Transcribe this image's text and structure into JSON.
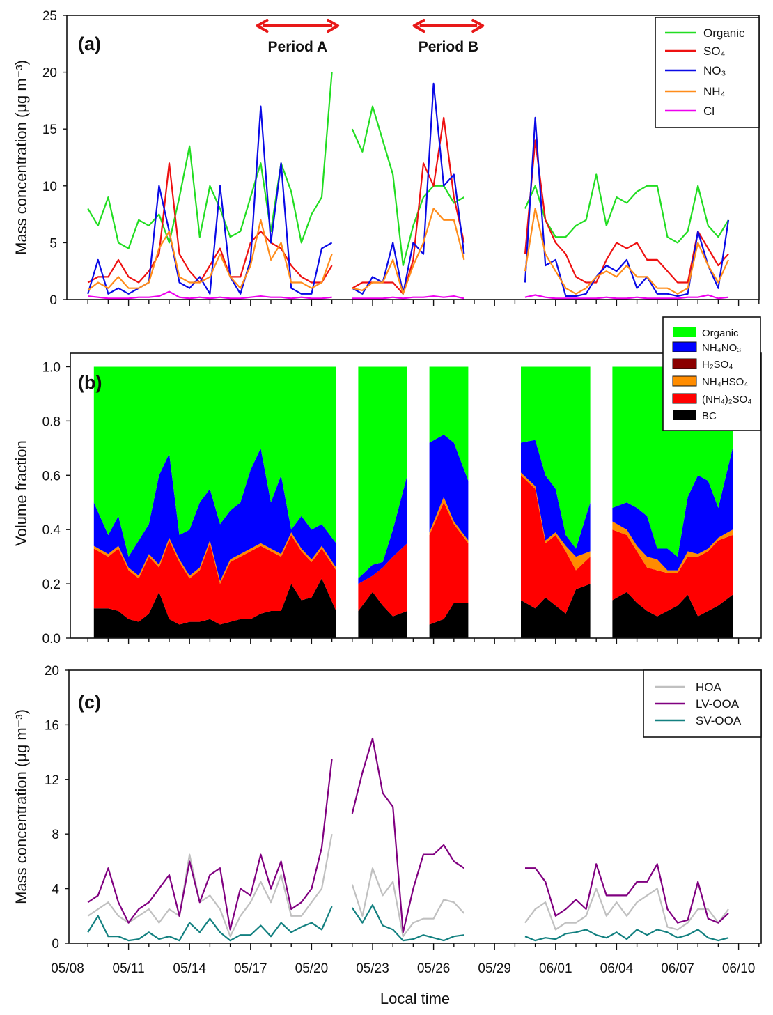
{
  "x": [
    "05/09 00:00",
    "05/09 12:00",
    "05/10 00:00",
    "05/10 12:00",
    "05/11 00:00",
    "05/11 12:00",
    "05/12 00:00",
    "05/12 12:00",
    "05/13 00:00",
    "05/13 12:00",
    "05/14 00:00",
    "05/14 12:00",
    "05/15 00:00",
    "05/15 12:00",
    "05/16 00:00",
    "05/16 12:00",
    "05/17 00:00",
    "05/17 12:00",
    "05/18 00:00",
    "05/18 12:00",
    "05/19 00:00",
    "05/19 12:00",
    "05/20 00:00",
    "05/20 12:00",
    "05/21 00:00",
    "05/21 12:00",
    "05/22 00:00",
    "05/22 12:00",
    "05/23 00:00",
    "05/23 12:00",
    "05/24 00:00",
    "05/24 12:00",
    "05/25 00:00",
    "05/25 12:00",
    "05/26 00:00",
    "05/26 12:00",
    "05/27 00:00",
    "05/27 12:00",
    "05/28 00:00",
    "05/28 12:00",
    "05/29 00:00",
    "05/29 12:00",
    "05/30 00:00",
    "05/30 12:00",
    "05/31 00:00",
    "05/31 12:00",
    "06/01 00:00",
    "06/01 12:00",
    "06/02 00:00",
    "06/02 12:00",
    "06/03 00:00",
    "06/03 12:00",
    "06/04 00:00",
    "06/04 12:00",
    "06/05 00:00",
    "06/05 12:00",
    "06/06 00:00",
    "06/06 12:00",
    "06/07 00:00",
    "06/07 12:00",
    "06/08 00:00",
    "06/08 12:00",
    "06/09 00:00",
    "06/09 12:00"
  ],
  "xaxis": {
    "label": "Local time",
    "ticklabels": [
      "05/08",
      "05/11",
      "05/14",
      "05/17",
      "05/20",
      "05/23",
      "05/26",
      "05/29",
      "06/01",
      "06/04",
      "06/07",
      "06/10"
    ],
    "xlim": [
      "05/08",
      "06/11"
    ]
  },
  "chart_data": [
    {
      "panel": "(a)",
      "type": "line",
      "ylabel": "Mass concentration (μg m⁻³)",
      "ylim": [
        0,
        25
      ],
      "yticks": [
        "0",
        "5",
        "10",
        "15",
        "20",
        "25"
      ],
      "legend_position": "top-right",
      "annotations": [
        {
          "label": "Period A",
          "start": "05/17 08:00",
          "end": "05/21 07:00",
          "color": "#e81818"
        },
        {
          "label": "Period B",
          "start": "05/25 01:00",
          "end": "05/28 10:00",
          "color": "#e81818"
        }
      ],
      "series": [
        {
          "name": "Organic",
          "color": "#22dd22",
          "values": [
            8,
            6.5,
            9,
            5,
            4.5,
            7,
            6.5,
            7.5,
            5,
            9,
            13.5,
            5.5,
            10,
            8,
            5.5,
            6,
            9,
            12,
            6,
            12,
            9.5,
            5,
            7.5,
            9,
            20,
            null,
            15,
            13,
            17,
            14,
            11,
            3,
            6.5,
            9,
            10,
            10,
            8.5,
            9,
            null,
            null,
            null,
            null,
            null,
            8,
            10,
            7,
            5.5,
            5.5,
            6.5,
            7,
            11,
            6.5,
            9,
            8.5,
            9.5,
            10,
            10,
            5.5,
            5,
            6,
            10,
            6.5,
            5.5,
            7
          ]
        },
        {
          "name": "SO₄",
          "color": "#ee1111",
          "values": [
            1.5,
            2,
            2,
            3.5,
            2,
            1.5,
            2.5,
            4,
            12,
            4,
            2.5,
            1.5,
            3,
            4.5,
            2,
            2,
            5,
            6,
            5,
            4.5,
            3,
            2,
            1.5,
            1.5,
            3,
            null,
            1,
            1.5,
            1.5,
            1.5,
            1.5,
            0.5,
            3.5,
            12,
            10,
            16,
            9,
            5,
            null,
            null,
            null,
            null,
            null,
            4,
            14,
            7,
            5,
            4,
            2,
            1.5,
            1.5,
            3.5,
            5,
            4.5,
            5,
            3.5,
            3.5,
            2.5,
            1.5,
            1.5,
            6,
            4.5,
            3,
            4
          ]
        },
        {
          "name": "NO₃",
          "color": "#0a0ae6",
          "values": [
            0.5,
            3.5,
            0.5,
            1,
            0.5,
            1,
            1.5,
            10,
            6,
            1.5,
            1,
            2,
            0.5,
            10,
            2,
            0.5,
            3.5,
            17,
            5,
            12,
            1,
            0.5,
            0.5,
            4.5,
            5,
            null,
            1,
            0.5,
            2,
            1.5,
            5,
            0.5,
            5,
            4,
            19,
            10,
            11,
            4,
            null,
            null,
            null,
            null,
            null,
            1.5,
            16,
            3,
            3.5,
            0.3,
            0.3,
            0.5,
            2,
            3,
            2.5,
            3.5,
            1,
            2,
            0.5,
            0.5,
            0.3,
            0.5,
            6,
            3,
            1,
            7
          ]
        },
        {
          "name": "NH₄",
          "color": "#ff8c1a",
          "values": [
            0.8,
            1.5,
            1,
            2,
            1,
            1,
            1.5,
            4.5,
            6,
            2,
            1.5,
            1.5,
            2,
            4,
            2,
            1,
            3,
            7,
            3.5,
            5,
            1.5,
            1.5,
            1,
            1.5,
            4,
            null,
            1,
            0.8,
            1.5,
            1.5,
            3.5,
            0.5,
            3,
            5,
            8,
            7,
            7,
            3.5,
            null,
            null,
            null,
            null,
            null,
            2.5,
            8,
            4,
            2.5,
            1,
            0.5,
            1,
            2,
            2.5,
            2,
            3,
            2,
            2,
            1,
            1,
            0.5,
            1,
            5,
            3,
            1.5,
            3.5
          ]
        },
        {
          "name": "Cl",
          "color": "#ee00ee",
          "values": [
            0.3,
            0.2,
            0.1,
            0.1,
            0.1,
            0.2,
            0.2,
            0.3,
            0.7,
            0.2,
            0.1,
            0.2,
            0.1,
            0.2,
            0.1,
            0.1,
            0.2,
            0.3,
            0.2,
            0.2,
            0.1,
            0.2,
            0.1,
            0.1,
            0.2,
            null,
            0.1,
            0.1,
            0.1,
            0.1,
            0.2,
            0.1,
            0.2,
            0.2,
            0.3,
            0.2,
            0.3,
            0.1,
            null,
            null,
            null,
            null,
            null,
            0.2,
            0.4,
            0.2,
            0.1,
            0.1,
            0.1,
            0.1,
            0.1,
            0.2,
            0.1,
            0.1,
            0.2,
            0.1,
            0.1,
            0.1,
            0.1,
            0.2,
            0.2,
            0.4,
            0.1,
            0.2
          ]
        }
      ]
    },
    {
      "panel": "(b)",
      "type": "area",
      "stacked": true,
      "ylabel": "Volume fraction",
      "ylim": [
        0,
        1.05
      ],
      "yticks": [
        "0.0",
        "0.2",
        "0.4",
        "0.6",
        "0.8",
        "1.0"
      ],
      "legend_position": "top-right",
      "series": [
        {
          "name": "BC",
          "color": "#000000",
          "values": [
            null,
            0.11,
            0.11,
            0.1,
            0.07,
            0.06,
            0.09,
            0.17,
            0.07,
            0.05,
            0.06,
            0.06,
            0.07,
            0.05,
            0.06,
            0.07,
            0.07,
            0.09,
            0.1,
            0.1,
            0.2,
            0.14,
            0.15,
            0.22,
            0.1,
            null,
            null,
            0.1,
            0.17,
            0.12,
            0.08,
            0.1,
            null,
            null,
            0.05,
            0.07,
            0.13,
            0.13,
            null,
            null,
            null,
            null,
            null,
            0.14,
            0.11,
            0.15,
            0.12,
            0.09,
            0.18,
            0.2,
            null,
            null,
            0.14,
            0.17,
            0.13,
            0.1,
            0.08,
            0.1,
            0.12,
            0.16,
            0.08,
            0.1,
            0.12,
            0.16
          ]
        },
        {
          "name": "(NH₄)₂SO₄",
          "color": "#ff0000",
          "values": [
            null,
            0.22,
            0.19,
            0.23,
            0.18,
            0.16,
            0.21,
            0.09,
            0.29,
            0.23,
            0.16,
            0.19,
            0.28,
            0.15,
            0.22,
            0.23,
            0.25,
            0.25,
            0.22,
            0.2,
            0.18,
            0.18,
            0.13,
            0.11,
            0.15,
            null,
            null,
            0.1,
            0.06,
            0.14,
            0.22,
            0.25,
            null,
            null,
            0.33,
            0.43,
            0.29,
            0.22,
            null,
            null,
            null,
            null,
            null,
            0.46,
            0.44,
            0.2,
            0.26,
            0.23,
            0.07,
            0.1,
            null,
            null,
            0.26,
            0.21,
            0.19,
            0.16,
            0.17,
            0.14,
            0.12,
            0.14,
            0.22,
            0.22,
            0.24,
            0.22
          ]
        },
        {
          "name": "NH₄HSO₄",
          "color": "#ff8c00",
          "values": [
            null,
            0.01,
            0.01,
            0.01,
            0.01,
            0.01,
            0.01,
            0.01,
            0.01,
            0.01,
            0.01,
            0.01,
            0.01,
            0.01,
            0.01,
            0.01,
            0.01,
            0.01,
            0.01,
            0.01,
            0.01,
            0.01,
            0.01,
            0.01,
            0.01,
            null,
            null,
            0,
            0,
            0,
            0,
            0,
            null,
            null,
            0.01,
            0.02,
            0.01,
            0.01,
            null,
            null,
            null,
            null,
            null,
            0.01,
            0.01,
            0.01,
            0.01,
            0.02,
            0.05,
            0.02,
            null,
            null,
            0.03,
            0.02,
            0.02,
            0.04,
            0.04,
            0.01,
            0.01,
            0.02,
            0.01,
            0.01,
            0.01,
            0.02
          ]
        },
        {
          "name": "H₂SO₄",
          "color": "#8b0000",
          "values": [
            null,
            0,
            0,
            0,
            0,
            0,
            0,
            0,
            0,
            0,
            0,
            0,
            0,
            0,
            0,
            0,
            0,
            0,
            0,
            0,
            0,
            0,
            0,
            0,
            0,
            null,
            null,
            0,
            0,
            0,
            0,
            0,
            null,
            null,
            0,
            0,
            0,
            0,
            null,
            null,
            null,
            null,
            null,
            0,
            0,
            0,
            0,
            0,
            0,
            0,
            null,
            null,
            0,
            0,
            0,
            0,
            0,
            0,
            0,
            0,
            0,
            0,
            0,
            0
          ]
        },
        {
          "name": "NH₄NO₃",
          "color": "#0000ff",
          "values": [
            null,
            0.16,
            0.07,
            0.11,
            0.04,
            0.13,
            0.11,
            0.33,
            0.31,
            0.09,
            0.17,
            0.24,
            0.19,
            0.21,
            0.18,
            0.19,
            0.29,
            0.35,
            0.17,
            0.29,
            0.01,
            0.12,
            0.11,
            0.08,
            0.09,
            null,
            null,
            0.02,
            0.04,
            0.02,
            0.1,
            0.25,
            null,
            null,
            0.33,
            0.23,
            0.29,
            0.22,
            null,
            null,
            null,
            null,
            null,
            0.11,
            0.17,
            0.24,
            0.16,
            0.04,
            0.03,
            0.18,
            null,
            null,
            0.05,
            0.1,
            0.14,
            0.15,
            0.04,
            0.08,
            0.05,
            0.2,
            0.29,
            0.25,
            0.11,
            0.3
          ]
        },
        {
          "name": "Organic",
          "color": "#00ff00",
          "values": [
            null,
            0.5,
            0.62,
            0.55,
            0.7,
            0.64,
            0.58,
            0.4,
            0.32,
            0.62,
            0.6,
            0.5,
            0.45,
            0.58,
            0.53,
            0.5,
            0.38,
            0.3,
            0.5,
            0.4,
            0.6,
            0.55,
            0.6,
            0.58,
            0.65,
            null,
            null,
            0.78,
            0.73,
            0.72,
            0.6,
            0.4,
            null,
            null,
            0.28,
            0.25,
            0.28,
            0.42,
            null,
            null,
            null,
            null,
            null,
            0.28,
            0.27,
            0.4,
            0.45,
            0.62,
            0.67,
            0.5,
            null,
            null,
            0.52,
            0.5,
            0.52,
            0.55,
            0.67,
            0.67,
            0.7,
            0.48,
            0.4,
            0.42,
            0.52,
            0.3
          ]
        }
      ],
      "legend_order": [
        "Organic",
        "NH₄NO₃",
        "H₂SO₄",
        "NH₄HSO₄",
        "(NH₄)₂SO₄",
        "BC"
      ]
    },
    {
      "panel": "(c)",
      "type": "line",
      "ylabel": "Mass concentration (μg m⁻³)",
      "ylim": [
        0,
        20
      ],
      "yticks": [
        "0",
        "4",
        "8",
        "12",
        "16",
        "20"
      ],
      "legend_position": "top-right",
      "series": [
        {
          "name": "HOA",
          "color": "#c0c0c0",
          "values": [
            2,
            2.5,
            3,
            2,
            1.5,
            2,
            2.5,
            1.5,
            2.5,
            2,
            6.5,
            3,
            3.5,
            2.5,
            0.5,
            2,
            3,
            4.5,
            3,
            5,
            2,
            2,
            3,
            4,
            8,
            null,
            4.3,
            2,
            5.5,
            3.5,
            4.5,
            0.5,
            1.5,
            1.8,
            1.8,
            3.2,
            3,
            2.2,
            null,
            null,
            null,
            null,
            null,
            1.5,
            2.5,
            3,
            1,
            1.5,
            1.5,
            2,
            4,
            2,
            3,
            2,
            3,
            3.5,
            4,
            1.2,
            1,
            1.5,
            2.5,
            2.5,
            1.5,
            2.5
          ]
        },
        {
          "name": "LV-OOA",
          "color": "#800080",
          "values": [
            3,
            3.5,
            5.5,
            3,
            1.5,
            2.5,
            3,
            4,
            5,
            2,
            6,
            3,
            5,
            5.5,
            1,
            4,
            3.5,
            6.5,
            4,
            6,
            2.5,
            3,
            4,
            7,
            13.5,
            null,
            9.5,
            12.5,
            15,
            11,
            10,
            0.8,
            4,
            6.5,
            6.5,
            7.2,
            6,
            5.5,
            null,
            null,
            null,
            null,
            null,
            5.5,
            5.5,
            4.5,
            2,
            2.5,
            3.2,
            2.5,
            5.8,
            3.5,
            3.5,
            3.5,
            4.5,
            4.5,
            5.8,
            2.5,
            1.5,
            1.7,
            4.5,
            1.8,
            1.5,
            2.2
          ]
        },
        {
          "name": "SV-OOA",
          "color": "#138080",
          "values": [
            0.8,
            2,
            0.5,
            0.5,
            0.2,
            0.3,
            0.8,
            0.3,
            0.5,
            0.2,
            1.5,
            0.8,
            1.8,
            0.8,
            0.2,
            0.6,
            0.6,
            1.3,
            0.5,
            1.5,
            0.8,
            1.2,
            1.5,
            1,
            2.7,
            null,
            2.6,
            1.5,
            2.8,
            1.3,
            1,
            0.2,
            0.3,
            0.6,
            0.4,
            0.2,
            0.5,
            0.6,
            null,
            null,
            null,
            null,
            null,
            0.5,
            0.2,
            0.4,
            0.3,
            0.7,
            0.8,
            1,
            0.6,
            0.4,
            0.8,
            0.3,
            1,
            0.6,
            1,
            0.8,
            0.4,
            0.6,
            1,
            0.4,
            0.2,
            0.4
          ]
        }
      ]
    }
  ]
}
